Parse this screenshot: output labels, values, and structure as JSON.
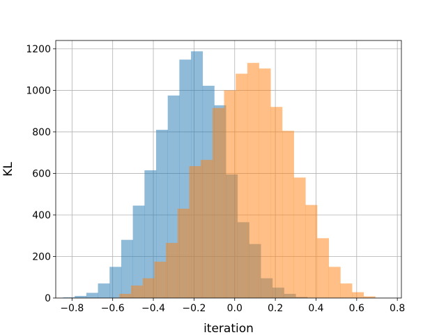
{
  "chart_data": {
    "type": "bar",
    "subtype": "overlapping-histogram",
    "title": "",
    "xlabel": "iteration",
    "ylabel": "KL",
    "xlim": [
      -0.88,
      0.82
    ],
    "ylim": [
      0,
      1240
    ],
    "xticks": [
      -0.8,
      -0.6,
      -0.4,
      -0.2,
      0.0,
      0.2,
      0.4,
      0.6,
      0.8
    ],
    "xtick_labels": [
      "−0.8",
      "−0.6",
      "−0.4",
      "−0.2",
      "0.0",
      "0.2",
      "0.4",
      "0.6",
      "0.8"
    ],
    "yticks": [
      0,
      200,
      400,
      600,
      800,
      1000,
      1200
    ],
    "ytick_labels": [
      "0",
      "200",
      "400",
      "600",
      "800",
      "1000",
      "1200"
    ],
    "grid": true,
    "alpha": 0.5,
    "series": [
      {
        "color": "#1f77b4",
        "bin_width": 0.0572,
        "bin_edges": [
          -0.844,
          -0.7868,
          -0.7296,
          -0.6724,
          -0.6152,
          -0.558,
          -0.5008,
          -0.4436,
          -0.3864,
          -0.3292,
          -0.272,
          -0.2148,
          -0.1576,
          -0.1004,
          -0.0432,
          0.014,
          0.0712,
          0.1284,
          0.1856,
          0.2428,
          0.3,
          0.3572
        ],
        "counts": [
          3,
          10,
          25,
          70,
          150,
          280,
          445,
          615,
          810,
          975,
          1148,
          1188,
          1022,
          928,
          595,
          365,
          260,
          95,
          50,
          20,
          5
        ]
      },
      {
        "color": "#ff7f0e",
        "bin_width": 0.0572,
        "bin_edges": [
          -0.567,
          -0.5098,
          -0.4526,
          -0.3954,
          -0.3382,
          -0.281,
          -0.2238,
          -0.1666,
          -0.1094,
          -0.0522,
          0.005,
          0.0622,
          0.1194,
          0.1766,
          0.2338,
          0.291,
          0.3482,
          0.4054,
          0.4626,
          0.5198,
          0.577,
          0.6342,
          0.6914
        ],
        "counts": [
          20,
          60,
          95,
          175,
          265,
          430,
          635,
          665,
          915,
          1000,
          1080,
          1132,
          1105,
          920,
          805,
          580,
          448,
          288,
          150,
          70,
          28,
          8
        ]
      }
    ]
  }
}
